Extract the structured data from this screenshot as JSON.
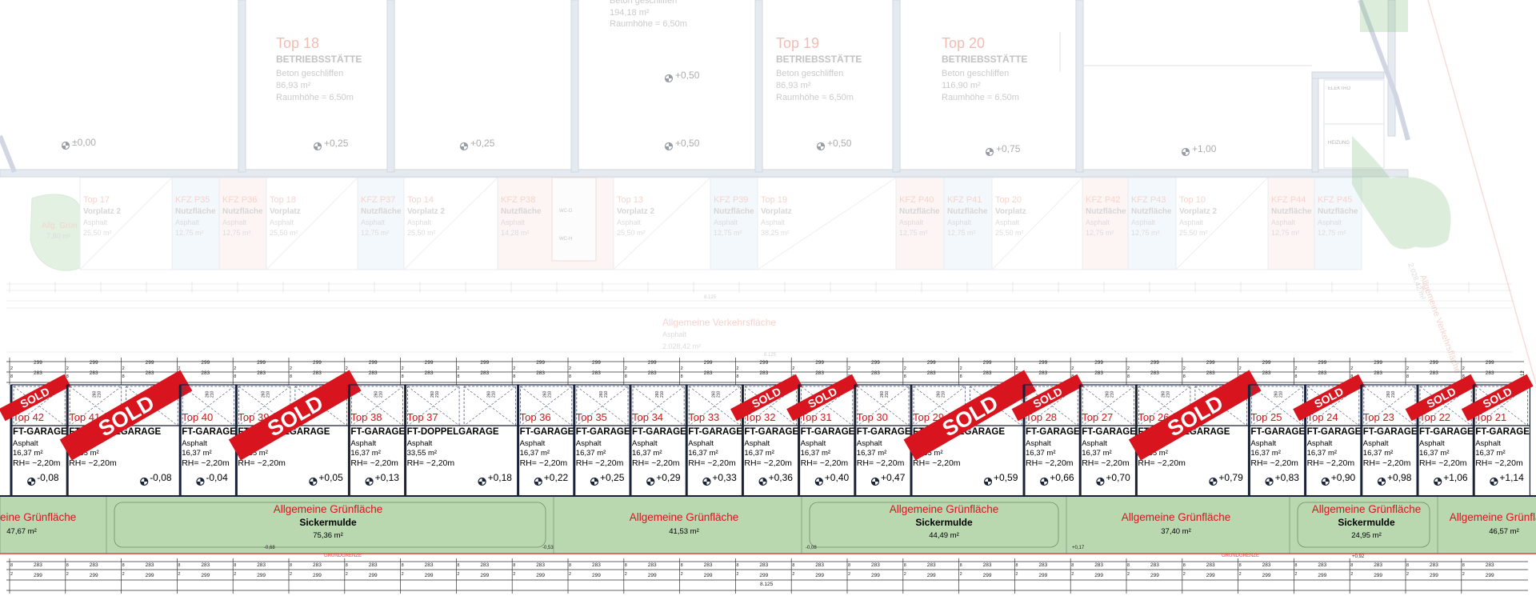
{
  "colors": {
    "wall": "#aab4c8",
    "red_text": "#e06a55",
    "sold_red": "#d8141e",
    "green": "#b9d8b0",
    "dark_line": "#1a2238",
    "blue_space": "#d7e6f5",
    "pink_space": "#f7dcd8"
  },
  "upper": {
    "tops": [
      {
        "name": "Top 18",
        "type": "BETRIEBSSTÄTTE",
        "material": "Beton geschliffen",
        "area": "86,93 m²",
        "height": "Raumhöhe = 6,50m"
      },
      {
        "name": "Top 19",
        "type": "BETRIEBSSTÄTTE",
        "material": "Beton geschliffen",
        "area": "86,93 m²",
        "height": "Raumhöhe = 6,50m"
      },
      {
        "name": "Top 20",
        "type": "BETRIEBSSTÄTTE",
        "material": "Beton geschliffen",
        "area": "116,90 m²",
        "height": "Raumhöhe = 6,50m"
      }
    ],
    "top_partial": {
      "material": "Beton geschliffen",
      "area": "194,18 m²",
      "height": "Raumhöhe = 6,50m"
    },
    "levels": [
      "±0,00",
      "+0,25",
      "+0,25",
      "+0,50",
      "+0,50",
      "+0,50",
      "+0,75",
      "+1,00"
    ],
    "service_labels": [
      "ELEKTRO",
      "HEIZUNG"
    ],
    "wc_labels": [
      "WC-D",
      "WC-H"
    ]
  },
  "middle_spaces": [
    {
      "name": "Allg. Grün",
      "sub": "",
      "area": "7,80 m²",
      "tone": "green"
    },
    {
      "name": "Top 17",
      "sub": "Vorplatz 2",
      "mat": "Asphalt",
      "area": "25,50 m²",
      "tone": "none"
    },
    {
      "name": "KFZ P35",
      "sub": "Nutzfläche",
      "mat": "Asphalt",
      "area": "12,75 m²",
      "tone": "blue"
    },
    {
      "name": "KFZ P36",
      "sub": "Nutzfläche",
      "mat": "Asphalt",
      "area": "12,75 m²",
      "tone": "pink"
    },
    {
      "name": "Top 18",
      "sub": "Vorplatz",
      "mat": "Asphalt",
      "area": "25,50 m²",
      "tone": "none"
    },
    {
      "name": "KFZ P37",
      "sub": "Nutzfläche",
      "mat": "Asphalt",
      "area": "12,75 m²",
      "tone": "blue"
    },
    {
      "name": "Top 14",
      "sub": "Vorplatz 2",
      "mat": "Asphalt",
      "area": "25,50 m²",
      "tone": "none"
    },
    {
      "name": "KFZ P38",
      "sub": "Nutzfläche",
      "mat": "Asphalt",
      "area": "14,28 m²",
      "tone": "pink"
    },
    {
      "name": "Top 13",
      "sub": "Vorplatz 2",
      "mat": "Asphalt",
      "area": "25,50 m²",
      "tone": "none"
    },
    {
      "name": "KFZ P39",
      "sub": "Nutzfläche",
      "mat": "Asphalt",
      "area": "12,75 m²",
      "tone": "blue"
    },
    {
      "name": "Top 19",
      "sub": "Vorplatz",
      "mat": "Asphalt",
      "area": "38,25 m²",
      "tone": "none"
    },
    {
      "name": "KFZ P40",
      "sub": "Nutzfläche",
      "mat": "Asphalt",
      "area": "12,75 m²",
      "tone": "pink"
    },
    {
      "name": "KFZ P41",
      "sub": "Nutzfläche",
      "mat": "Asphalt",
      "area": "12,75 m²",
      "tone": "blue"
    },
    {
      "name": "Top 20",
      "sub": "Vorplatz",
      "mat": "Asphalt",
      "area": "25,50 m²",
      "tone": "none"
    },
    {
      "name": "KFZ P42",
      "sub": "Nutzfläche",
      "mat": "Asphalt",
      "area": "12,75 m²",
      "tone": "pink"
    },
    {
      "name": "KFZ P43",
      "sub": "Nutzfläche",
      "mat": "Asphalt",
      "area": "12,75 m²",
      "tone": "blue"
    },
    {
      "name": "Top 10",
      "sub": "Vorplatz 2",
      "mat": "Asphalt",
      "area": "25,50 m²",
      "tone": "none"
    },
    {
      "name": "KFZ P44",
      "sub": "Nutzfläche",
      "mat": "Asphalt",
      "area": "12,75 m²",
      "tone": "pink"
    },
    {
      "name": "KFZ P45",
      "sub": "Nutzfläche",
      "mat": "Asphalt",
      "area": "12,75 m²",
      "tone": "blue"
    }
  ],
  "traffic_area": {
    "name": "Allgemeine Verkehrsfläche",
    "mat": "Asphalt",
    "area": "2.028,42 m²"
  },
  "side_traffic": {
    "name": "Allgemeine Verkehrsfläche",
    "mat": "Asphalt",
    "area": "2.028,42 m²"
  },
  "garages": [
    {
      "top": "Top 42",
      "type": "FT-GARAGE",
      "mat": "Asphalt",
      "area": "16,37 m²",
      "rh": "RH= ~2,20m",
      "level": "-0,08",
      "sold": "small"
    },
    {
      "top": "Top 41",
      "type": "FT-DOPPELGARAGE",
      "mat": "Asphalt",
      "area": "33,55 m²",
      "rh": "RH= ~2,20m",
      "level": "-0,08",
      "sold": "big"
    },
    {
      "top": "Top 40",
      "type": "FT-GARAGE",
      "mat": "Asphalt",
      "area": "16,37 m²",
      "rh": "RH= ~2,20m",
      "level": "-0,04",
      "sold": ""
    },
    {
      "top": "Top 39",
      "type": "FT-DOPPELGARAGE",
      "mat": "Asphalt",
      "area": "33,55 m²",
      "rh": "RH= ~2,20m",
      "level": "+0,05",
      "sold": "big"
    },
    {
      "top": "Top 38",
      "type": "FT-GARAGE",
      "mat": "Asphalt",
      "area": "16,37 m²",
      "rh": "RH= ~2,20m",
      "level": "+0,13",
      "sold": ""
    },
    {
      "top": "Top 37",
      "type": "FT-DOPPELGARAGE",
      "mat": "Asphalt",
      "area": "33,55 m²",
      "rh": "RH= ~2,20m",
      "level": "+0,18",
      "sold": ""
    },
    {
      "top": "Top 36",
      "type": "FT-GARAGE",
      "mat": "Asphalt",
      "area": "16,37 m²",
      "rh": "RH= ~2,20m",
      "level": "+0,22",
      "sold": ""
    },
    {
      "top": "Top 35",
      "type": "FT-GARAGE",
      "mat": "Asphalt",
      "area": "16,37 m²",
      "rh": "RH= ~2,20m",
      "level": "+0,25",
      "sold": ""
    },
    {
      "top": "Top 34",
      "type": "FT-GARAGE",
      "mat": "Asphalt",
      "area": "16,37 m²",
      "rh": "RH= ~2,20m",
      "level": "+0,29",
      "sold": ""
    },
    {
      "top": "Top 33",
      "type": "FT-GARAGE",
      "mat": "Asphalt",
      "area": "16,37 m²",
      "rh": "RH= ~2,20m",
      "level": "+0,33",
      "sold": ""
    },
    {
      "top": "Top 32",
      "type": "FT-GARAGE",
      "mat": "Asphalt",
      "area": "16,37 m²",
      "rh": "RH= ~2,20m",
      "level": "+0,36",
      "sold": "small"
    },
    {
      "top": "Top 31",
      "type": "FT-GARAGE",
      "mat": "Asphalt",
      "area": "16,37 m²",
      "rh": "RH= ~2,20m",
      "level": "+0,40",
      "sold": "small"
    },
    {
      "top": "Top 30",
      "type": "FT-GARAGE",
      "mat": "Asphalt",
      "area": "16,37 m²",
      "rh": "RH= ~2,20m",
      "level": "+0,47",
      "sold": ""
    },
    {
      "top": "Top 29",
      "type": "FT-DOPPELGARAGE",
      "mat": "Asphalt",
      "area": "33,55 m²",
      "rh": "RH= ~2,20m",
      "level": "+0,59",
      "sold": "big"
    },
    {
      "top": "Top 28",
      "type": "FT-GARAGE",
      "mat": "Asphalt",
      "area": "16,37 m²",
      "rh": "RH= ~2,20m",
      "level": "+0,66",
      "sold": "small"
    },
    {
      "top": "Top 27",
      "type": "FT-GARAGE",
      "mat": "Asphalt",
      "area": "16,37 m²",
      "rh": "RH= ~2,20m",
      "level": "+0,70",
      "sold": ""
    },
    {
      "top": "Top 26",
      "type": "FT-DOPPELGARAGE",
      "mat": "Asphalt",
      "area": "33,55 m²",
      "rh": "RH= ~2,20m",
      "level": "+0,79",
      "sold": "big"
    },
    {
      "top": "Top 25",
      "type": "FT-GARAGE",
      "mat": "Asphalt",
      "area": "16,37 m²",
      "rh": "RH= ~2,20m",
      "level": "+0,83",
      "sold": ""
    },
    {
      "top": "Top 24",
      "type": "FT-GARAGE",
      "mat": "Asphalt",
      "area": "16,37 m²",
      "rh": "RH= ~2,20m",
      "level": "+0,90",
      "sold": "small"
    },
    {
      "top": "Top 23",
      "type": "FT-GARAGE",
      "mat": "Asphalt",
      "area": "16,37 m²",
      "rh": "RH= ~2,20m",
      "level": "+0,98",
      "sold": ""
    },
    {
      "top": "Top 22",
      "type": "FT-GARAGE",
      "mat": "Asphalt",
      "area": "16,37 m²",
      "rh": "RH= ~2,20m",
      "level": "+1,06",
      "sold": "small"
    },
    {
      "top": "Top 21",
      "type": "FT-GARAGE",
      "mat": "Asphalt",
      "area": "16,37 m²",
      "rh": "RH= ~2,20m",
      "level": "+1,14",
      "sold": "small"
    }
  ],
  "sold_label": "SOLD",
  "green_strips": [
    {
      "name": "Allgemeine Grünfläche",
      "sub": "",
      "area": "47,67 m²"
    },
    {
      "name": "Allgemeine Grünfläche",
      "sub": "Sickermulde",
      "area": "75,36 m²"
    },
    {
      "name": "Allgemeine Grünfläche",
      "sub": "",
      "area": "41,53 m²"
    },
    {
      "name": "Allgemeine Grünfläche",
      "sub": "Sickermulde",
      "area": "44,49 m²"
    },
    {
      "name": "Allgemeine Grünfläche",
      "sub": "",
      "area": "37,40 m²"
    },
    {
      "name": "Allgemeine Grünfläche",
      "sub": "Sickermulde",
      "area": "24,95 m²"
    },
    {
      "name": "Allgemeine Grünfläche",
      "sub": "",
      "area": "46,57 m²"
    }
  ],
  "green_levels": [
    "-0,68",
    "-0,53",
    "-0,08",
    "+0,17",
    "+0,92"
  ],
  "grenze_label": "GRUNDGRENZE",
  "dims": {
    "a": "299",
    "b": "283",
    "c": "8",
    "d": "2",
    "door": "260",
    "door2": "210",
    "total": "8.125",
    "mid_total": "8.125",
    "side": "590",
    "side2": "12"
  }
}
